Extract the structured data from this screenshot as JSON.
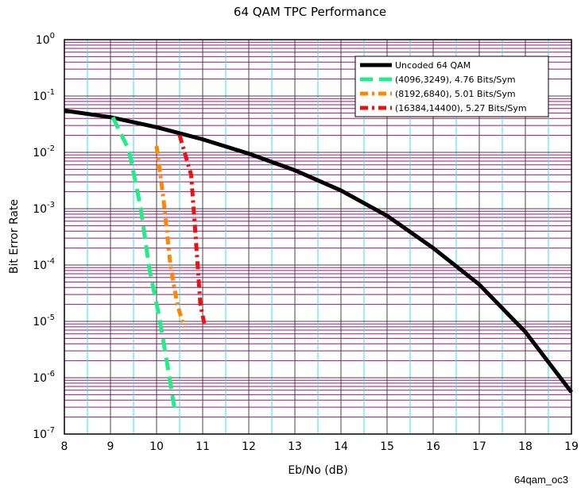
{
  "chart_data": {
    "type": "line",
    "title": "64 QAM TPC Performance",
    "xlabel": "Eb/No (dB)",
    "ylabel": "Bit Error Rate",
    "xlim": [
      8,
      19
    ],
    "ylim_exp": [
      -7,
      0
    ],
    "yscale": "log",
    "x_ticks": [
      "8",
      "9",
      "10",
      "11",
      "12",
      "13",
      "14",
      "15",
      "16",
      "17",
      "18",
      "19"
    ],
    "y_ticks": [
      {
        "base": "10",
        "exp": "0"
      },
      {
        "base": "10",
        "exp": "-1"
      },
      {
        "base": "10",
        "exp": "-2"
      },
      {
        "base": "10",
        "exp": "-3"
      },
      {
        "base": "10",
        "exp": "-4"
      },
      {
        "base": "10",
        "exp": "-5"
      },
      {
        "base": "10",
        "exp": "-6"
      },
      {
        "base": "10",
        "exp": "-7"
      }
    ],
    "grid": true,
    "legend_position": "top-right",
    "series": [
      {
        "name": "Uncoded 64 QAM",
        "color": "#000000",
        "style": "solid",
        "x": [
          8,
          9,
          10,
          11,
          12,
          13,
          14,
          15,
          16,
          17,
          18,
          19
        ],
        "y": [
          0.055,
          0.042,
          0.028,
          0.017,
          0.0095,
          0.0048,
          0.0021,
          0.00075,
          0.0002,
          4.5e-05,
          6.5e-06,
          5.5e-07
        ]
      },
      {
        "name": "(4096,3249), 4.76 Bits/Sym",
        "color": "#22ee88",
        "style": "dash",
        "x": [
          9.05,
          9.4,
          9.65,
          9.85,
          10.05,
          10.2,
          10.4
        ],
        "y": [
          0.042,
          0.011,
          0.0011,
          8e-05,
          1.3e-05,
          2.5e-06,
          2.5e-07
        ]
      },
      {
        "name": "(8192,6840), 5.01 Bits/Sym",
        "color": "#ff8800",
        "style": "dashdot",
        "x": [
          10.0,
          10.15,
          10.3,
          10.45,
          10.6
        ],
        "y": [
          0.013,
          0.0015,
          0.0001,
          2e-05,
          7.8e-06
        ]
      },
      {
        "name": "(16384,14400), 5.27 Bits/Sym",
        "color": "#ee1111",
        "style": "dashdot",
        "x": [
          10.5,
          10.75,
          10.85,
          10.95,
          11.05
        ],
        "y": [
          0.02,
          0.004,
          0.0003,
          2e-05,
          8e-06
        ]
      }
    ]
  },
  "figure_id": "64qam_oc3"
}
